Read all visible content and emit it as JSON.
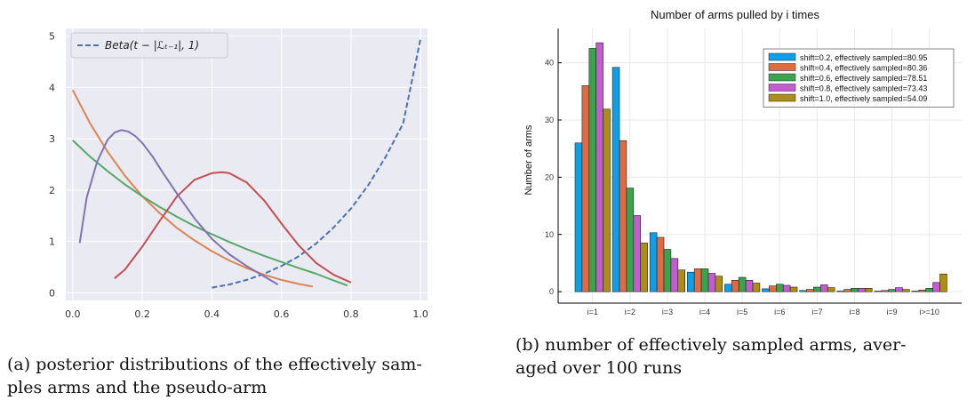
{
  "chart_data": [
    {
      "id": "a",
      "type": "line",
      "xlim": [
        -0.02,
        1.02
      ],
      "ylim": [
        -0.15,
        5.15
      ],
      "x_ticks": [
        0.0,
        0.2,
        0.4,
        0.6,
        0.8,
        1.0
      ],
      "x_tick_labels": [
        "0.0",
        "0.2",
        "0.4",
        "0.6",
        "0.8",
        "1.0"
      ],
      "y_ticks": [
        0,
        1,
        2,
        3,
        4,
        5
      ],
      "y_tick_labels": [
        "0",
        "1",
        "2",
        "3",
        "4",
        "5"
      ],
      "grid": true,
      "legend_position": "top-left",
      "legend": [
        "Beta(t − |ℒₜ₋₁|, 1)"
      ],
      "series": [
        {
          "name": "Beta(t − |ℒₜ₋₁|, 1)",
          "color": "#4c72b0",
          "dashed": true,
          "x": [
            0.4,
            0.45,
            0.5,
            0.55,
            0.6,
            0.65,
            0.7,
            0.75,
            0.8,
            0.85,
            0.9,
            0.95,
            1.0
          ],
          "y": [
            0.1,
            0.16,
            0.25,
            0.37,
            0.52,
            0.71,
            0.96,
            1.27,
            1.64,
            2.1,
            2.65,
            3.3,
            4.95
          ]
        },
        {
          "color": "#dd8452",
          "dashed": false,
          "x": [
            0.0,
            0.05,
            0.1,
            0.15,
            0.2,
            0.25,
            0.3,
            0.35,
            0.4,
            0.45,
            0.5,
            0.55,
            0.6,
            0.65,
            0.69
          ],
          "y": [
            3.95,
            3.3,
            2.75,
            2.28,
            1.88,
            1.55,
            1.26,
            1.02,
            0.81,
            0.63,
            0.48,
            0.35,
            0.25,
            0.17,
            0.12
          ]
        },
        {
          "color": "#55a868",
          "dashed": false,
          "x": [
            0.0,
            0.05,
            0.1,
            0.15,
            0.2,
            0.25,
            0.3,
            0.35,
            0.4,
            0.45,
            0.5,
            0.55,
            0.6,
            0.65,
            0.7,
            0.75,
            0.79
          ],
          "y": [
            2.97,
            2.65,
            2.37,
            2.11,
            1.88,
            1.67,
            1.48,
            1.3,
            1.14,
            0.99,
            0.85,
            0.72,
            0.6,
            0.48,
            0.37,
            0.24,
            0.14
          ]
        },
        {
          "color": "#c44e52",
          "dashed": false,
          "x": [
            0.12,
            0.15,
            0.2,
            0.25,
            0.3,
            0.35,
            0.4,
            0.43,
            0.45,
            0.5,
            0.55,
            0.6,
            0.65,
            0.7,
            0.75,
            0.8
          ],
          "y": [
            0.28,
            0.45,
            0.9,
            1.4,
            1.88,
            2.2,
            2.33,
            2.35,
            2.33,
            2.15,
            1.8,
            1.35,
            0.92,
            0.58,
            0.35,
            0.2
          ]
        },
        {
          "color": "#8172b2",
          "dashed": false,
          "x": [
            0.02,
            0.04,
            0.07,
            0.1,
            0.12,
            0.14,
            0.16,
            0.18,
            0.2,
            0.23,
            0.26,
            0.3,
            0.35,
            0.4,
            0.45,
            0.5,
            0.55,
            0.59
          ],
          "y": [
            0.97,
            1.85,
            2.55,
            2.98,
            3.12,
            3.17,
            3.14,
            3.05,
            2.92,
            2.65,
            2.33,
            1.93,
            1.45,
            1.05,
            0.75,
            0.52,
            0.32,
            0.16
          ]
        }
      ]
    },
    {
      "id": "b",
      "type": "bar",
      "title": "Number of arms pulled by i times",
      "ylabel": "Number of arms",
      "xlabel": "",
      "ylim": [
        -2,
        46
      ],
      "y_ticks": [
        0,
        10,
        20,
        30,
        40
      ],
      "y_tick_labels": [
        "0",
        "10",
        "20",
        "30",
        "40"
      ],
      "grid": true,
      "legend_position": "top-right",
      "categories": [
        "i=1",
        "i=2",
        "i=3",
        "i=4",
        "i=5",
        "i=6",
        "i=7",
        "i=8",
        "i=9",
        "i>=10"
      ],
      "series": [
        {
          "name": "shift=0.2, effectively sampled=80.95",
          "color": "#0f9fe6",
          "values": [
            26.0,
            39.2,
            10.3,
            3.4,
            1.3,
            0.5,
            0.2,
            0.1,
            0.1,
            0.1
          ]
        },
        {
          "name": "shift=0.4, effectively sampled=80.36",
          "color": "#e06a42",
          "values": [
            36.0,
            26.4,
            9.5,
            4.0,
            2.0,
            1.0,
            0.4,
            0.4,
            0.2,
            0.3
          ]
        },
        {
          "name": "shift=0.6, effectively sampled=78.51",
          "color": "#3aa44c",
          "values": [
            42.5,
            18.1,
            7.4,
            4.0,
            2.5,
            1.3,
            0.8,
            0.6,
            0.4,
            0.6
          ]
        },
        {
          "name": "shift=0.8, effectively sampled=73.43",
          "color": "#c45bd0",
          "values": [
            43.5,
            13.3,
            5.8,
            3.2,
            2.0,
            1.1,
            1.2,
            0.6,
            0.7,
            1.6
          ]
        },
        {
          "name": "shift=1.0, effectively sampled=54.09",
          "color": "#ae8e10",
          "values": [
            31.9,
            8.5,
            3.8,
            2.7,
            1.5,
            0.8,
            0.7,
            0.6,
            0.4,
            3.1
          ]
        }
      ]
    }
  ],
  "captions": {
    "a": "(a) posterior distributions of the effectively sam-ples arms and the pseudo-arm",
    "a_line1": "(a) posterior distributions of the effectively sam-",
    "a_line2": "ples arms and the pseudo-arm",
    "b_line1": "(b) number of effectively sampled arms, aver-",
    "b_line2": "aged over 100 runs"
  }
}
